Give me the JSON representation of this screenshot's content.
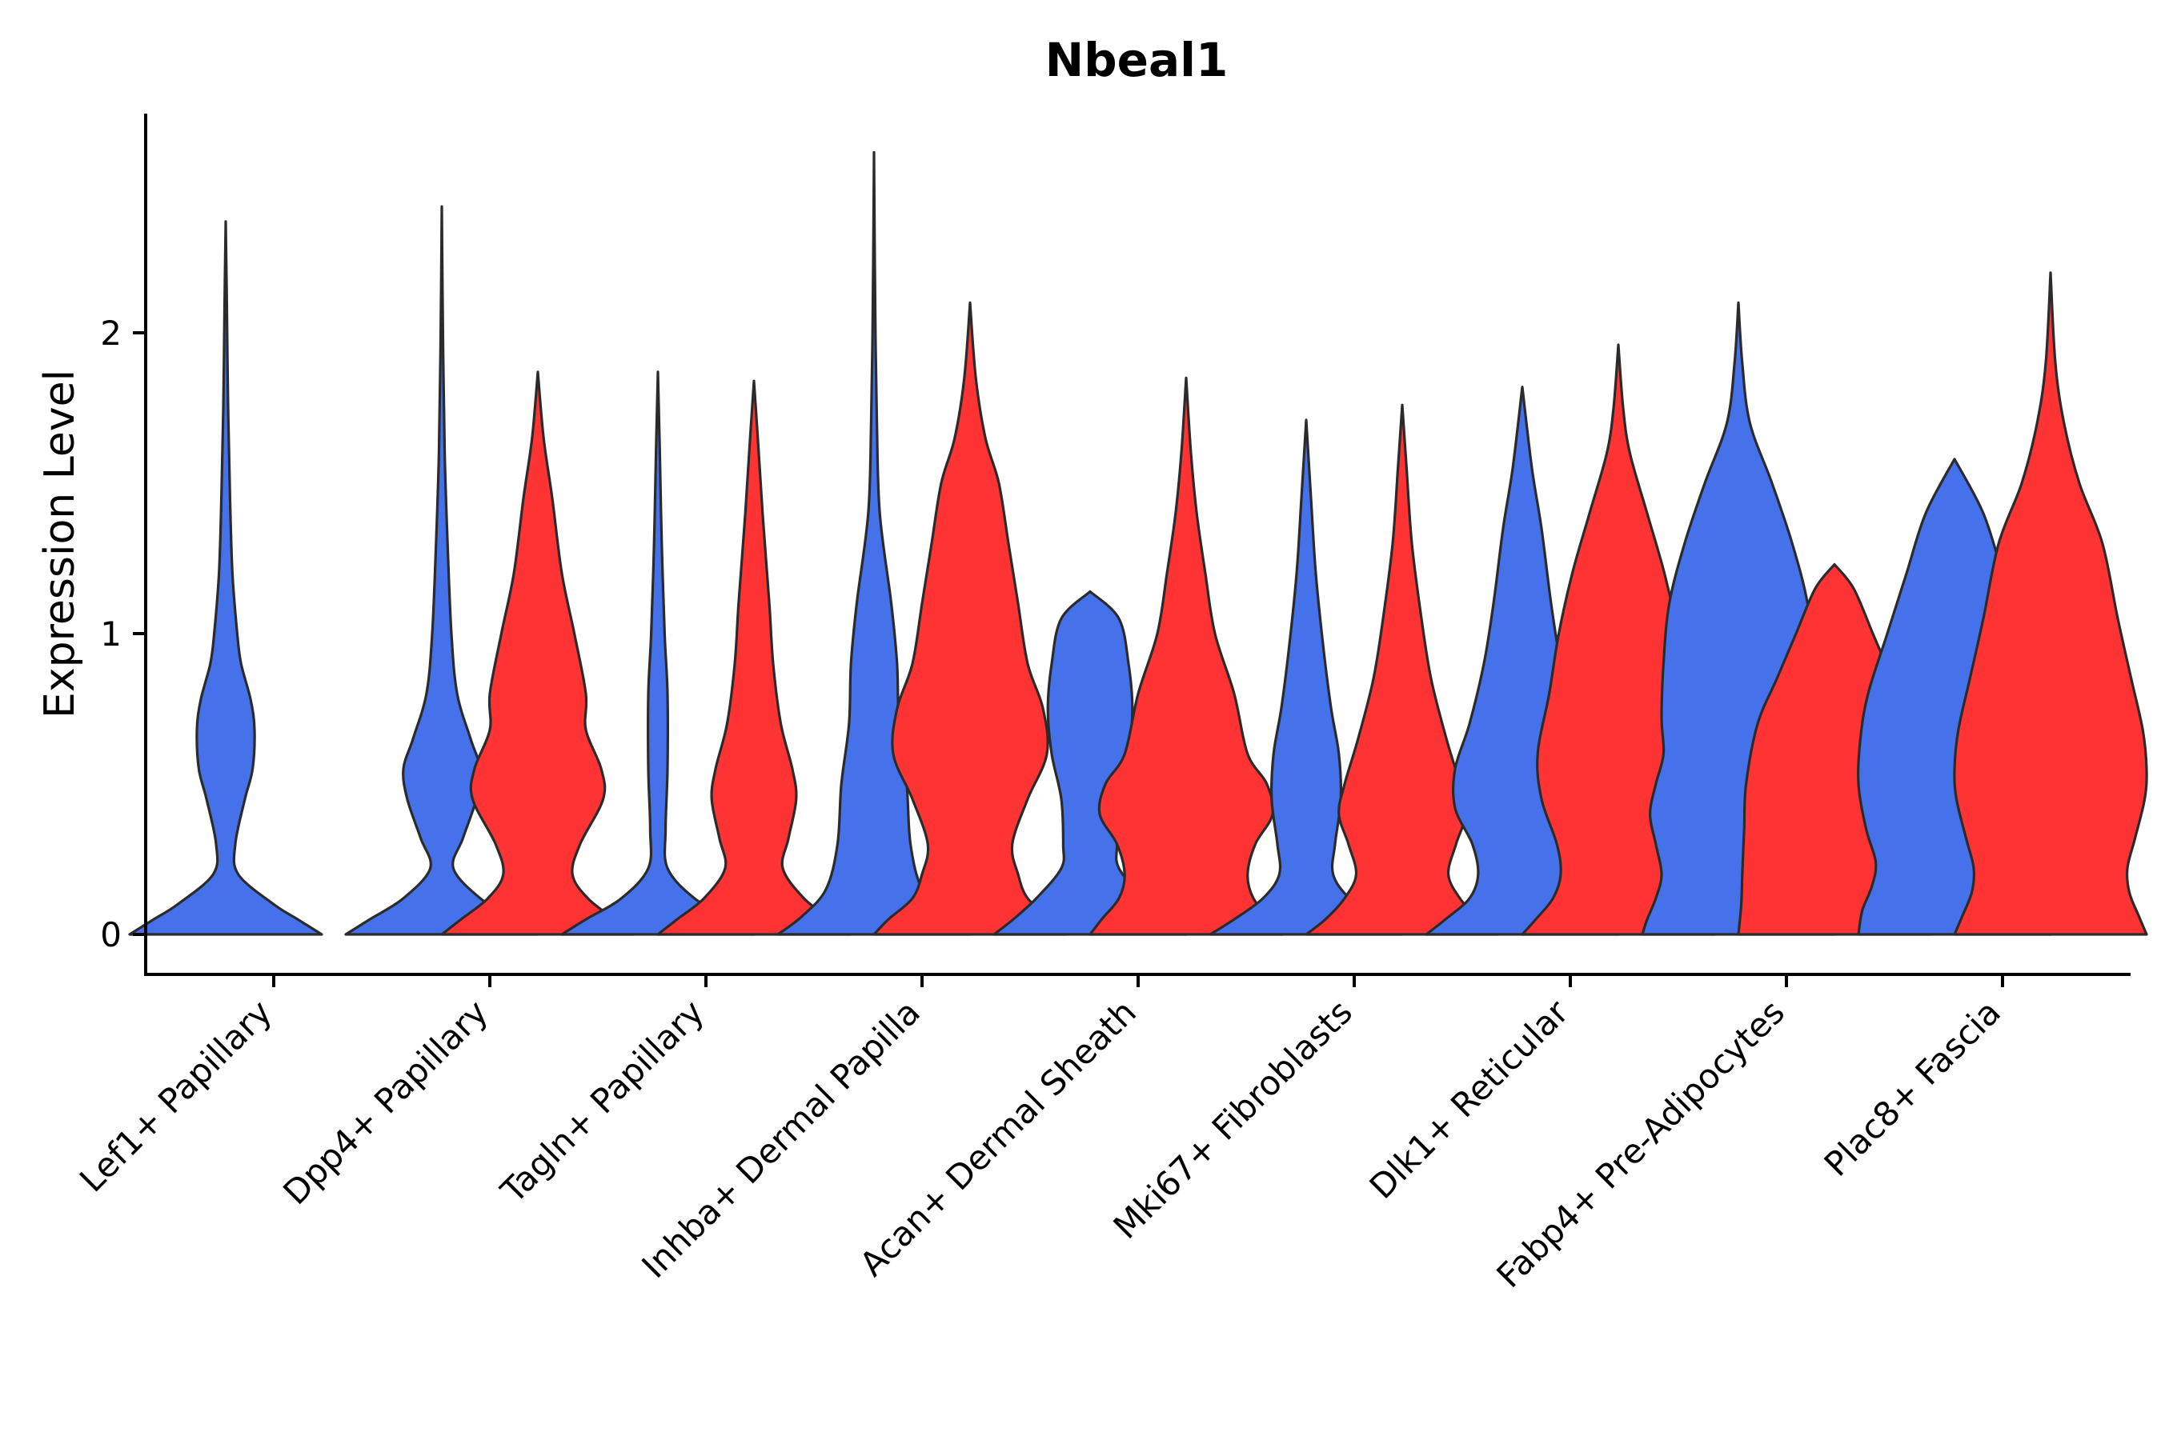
{
  "chart_data": {
    "type": "violin",
    "title": "Nbeal1",
    "xlabel": "",
    "ylabel": "Expression Level",
    "ylim": [
      -0.13,
      2.73
    ],
    "yticks": [
      0,
      1,
      2
    ],
    "legend": "none",
    "colors": {
      "group_a": "#4571EA",
      "group_b": "#FF3333",
      "outline": "#2b2b2b"
    },
    "series": [
      {
        "name": "group_a",
        "color": "#4571EA"
      },
      {
        "name": "group_b",
        "color": "#FF3333"
      }
    ],
    "categories": [
      "Lef1+ Papillary",
      "Dpp4+ Papillary",
      "Tagln+ Papillary",
      "Inhba+ Dermal Papilla",
      "Acan+ Dermal Sheath",
      "Mki67+ Fibroblasts",
      "Dlk1+ Reticular",
      "Fabp4+ Pre-Adipocytes",
      "Plac8+ Fascia"
    ],
    "violins": [
      {
        "category": "Lef1+ Papillary",
        "series": "group_a",
        "max": 2.37,
        "profile": [
          [
            0,
            1.0
          ],
          [
            0.05,
            0.75
          ],
          [
            0.1,
            0.5
          ],
          [
            0.2,
            0.13
          ],
          [
            0.3,
            0.1
          ],
          [
            0.45,
            0.2
          ],
          [
            0.55,
            0.28
          ],
          [
            0.68,
            0.3
          ],
          [
            0.78,
            0.26
          ],
          [
            0.9,
            0.16
          ],
          [
            1.0,
            0.12
          ],
          [
            1.2,
            0.07
          ],
          [
            1.45,
            0.045
          ],
          [
            1.75,
            0.025
          ],
          [
            2.1,
            0.012
          ],
          [
            2.37,
            0
          ]
        ]
      },
      {
        "category": "Dpp4+ Papillary",
        "series": "group_a",
        "max": 2.42,
        "profile": [
          [
            0,
            1.0
          ],
          [
            0.05,
            0.75
          ],
          [
            0.12,
            0.4
          ],
          [
            0.22,
            0.12
          ],
          [
            0.32,
            0.22
          ],
          [
            0.45,
            0.36
          ],
          [
            0.55,
            0.4
          ],
          [
            0.65,
            0.3
          ],
          [
            0.8,
            0.16
          ],
          [
            1.0,
            0.1
          ],
          [
            1.3,
            0.06
          ],
          [
            1.6,
            0.03
          ],
          [
            2.0,
            0.012
          ],
          [
            2.42,
            0
          ]
        ]
      },
      {
        "category": "Dpp4+ Papillary",
        "series": "group_b",
        "max": 1.87,
        "profile": [
          [
            0,
            1.0
          ],
          [
            0.05,
            0.8
          ],
          [
            0.12,
            0.52
          ],
          [
            0.2,
            0.36
          ],
          [
            0.3,
            0.44
          ],
          [
            0.45,
            0.68
          ],
          [
            0.55,
            0.66
          ],
          [
            0.68,
            0.5
          ],
          [
            0.8,
            0.5
          ],
          [
            1.0,
            0.38
          ],
          [
            1.2,
            0.25
          ],
          [
            1.45,
            0.15
          ],
          [
            1.65,
            0.06
          ],
          [
            1.87,
            0
          ]
        ]
      },
      {
        "category": "Tagln+ Papillary",
        "series": "group_a",
        "max": 1.87,
        "profile": [
          [
            0,
            1.0
          ],
          [
            0.05,
            0.75
          ],
          [
            0.12,
            0.38
          ],
          [
            0.22,
            0.1
          ],
          [
            0.35,
            0.08
          ],
          [
            0.55,
            0.1
          ],
          [
            0.8,
            0.1
          ],
          [
            1.0,
            0.07
          ],
          [
            1.3,
            0.04
          ],
          [
            1.6,
            0.02
          ],
          [
            1.87,
            0
          ]
        ]
      },
      {
        "category": "Tagln+ Papillary",
        "series": "group_b",
        "max": 1.84,
        "profile": [
          [
            0,
            1.0
          ],
          [
            0.05,
            0.8
          ],
          [
            0.12,
            0.52
          ],
          [
            0.22,
            0.3
          ],
          [
            0.32,
            0.36
          ],
          [
            0.45,
            0.44
          ],
          [
            0.55,
            0.4
          ],
          [
            0.7,
            0.28
          ],
          [
            0.9,
            0.2
          ],
          [
            1.1,
            0.16
          ],
          [
            1.4,
            0.09
          ],
          [
            1.65,
            0.04
          ],
          [
            1.84,
            0
          ]
        ]
      },
      {
        "category": "Inhba+ Dermal Papilla",
        "series": "group_a",
        "max": 2.6,
        "profile": [
          [
            0,
            1.0
          ],
          [
            0.06,
            0.75
          ],
          [
            0.15,
            0.5
          ],
          [
            0.3,
            0.38
          ],
          [
            0.5,
            0.34
          ],
          [
            0.7,
            0.26
          ],
          [
            0.9,
            0.24
          ],
          [
            1.1,
            0.18
          ],
          [
            1.4,
            0.06
          ],
          [
            1.7,
            0.03
          ],
          [
            2.0,
            0.015
          ],
          [
            2.3,
            0.007
          ],
          [
            2.6,
            0
          ]
        ]
      },
      {
        "category": "Inhba+ Dermal Papilla",
        "series": "group_b",
        "max": 2.1,
        "profile": [
          [
            0,
            1.0
          ],
          [
            0.05,
            0.85
          ],
          [
            0.12,
            0.6
          ],
          [
            0.2,
            0.5
          ],
          [
            0.3,
            0.44
          ],
          [
            0.45,
            0.6
          ],
          [
            0.6,
            0.8
          ],
          [
            0.75,
            0.76
          ],
          [
            0.9,
            0.6
          ],
          [
            1.1,
            0.5
          ],
          [
            1.3,
            0.4
          ],
          [
            1.5,
            0.3
          ],
          [
            1.65,
            0.16
          ],
          [
            1.85,
            0.06
          ],
          [
            2.1,
            0
          ]
        ]
      },
      {
        "category": "Acan+ Dermal Sheath",
        "series": "group_a",
        "max": 1.14,
        "profile": [
          [
            0,
            1.0
          ],
          [
            0.05,
            0.8
          ],
          [
            0.12,
            0.56
          ],
          [
            0.22,
            0.3
          ],
          [
            0.3,
            0.28
          ],
          [
            0.45,
            0.3
          ],
          [
            0.6,
            0.4
          ],
          [
            0.75,
            0.44
          ],
          [
            0.9,
            0.4
          ],
          [
            1.05,
            0.3
          ],
          [
            1.14,
            0
          ]
        ]
      },
      {
        "category": "Acan+ Dermal Sheath",
        "series": "group_b",
        "max": 1.85,
        "profile": [
          [
            0,
            1.0
          ],
          [
            0.05,
            0.88
          ],
          [
            0.12,
            0.7
          ],
          [
            0.2,
            0.64
          ],
          [
            0.3,
            0.72
          ],
          [
            0.4,
            0.9
          ],
          [
            0.5,
            0.84
          ],
          [
            0.6,
            0.64
          ],
          [
            0.8,
            0.5
          ],
          [
            1.0,
            0.3
          ],
          [
            1.2,
            0.2
          ],
          [
            1.4,
            0.11
          ],
          [
            1.6,
            0.05
          ],
          [
            1.85,
            0
          ]
        ]
      },
      {
        "category": "Mki67+ Fibroblasts",
        "series": "group_a",
        "max": 1.71,
        "profile": [
          [
            0,
            1.0
          ],
          [
            0.05,
            0.75
          ],
          [
            0.12,
            0.45
          ],
          [
            0.2,
            0.28
          ],
          [
            0.3,
            0.3
          ],
          [
            0.45,
            0.36
          ],
          [
            0.6,
            0.34
          ],
          [
            0.75,
            0.26
          ],
          [
            0.95,
            0.18
          ],
          [
            1.2,
            0.1
          ],
          [
            1.45,
            0.05
          ],
          [
            1.71,
            0
          ]
        ]
      },
      {
        "category": "Mki67+ Fibroblasts",
        "series": "group_b",
        "max": 1.76,
        "profile": [
          [
            0,
            1.0
          ],
          [
            0.05,
            0.8
          ],
          [
            0.12,
            0.6
          ],
          [
            0.2,
            0.48
          ],
          [
            0.3,
            0.56
          ],
          [
            0.4,
            0.66
          ],
          [
            0.5,
            0.6
          ],
          [
            0.65,
            0.46
          ],
          [
            0.85,
            0.3
          ],
          [
            1.05,
            0.2
          ],
          [
            1.3,
            0.1
          ],
          [
            1.55,
            0.045
          ],
          [
            1.76,
            0
          ]
        ]
      },
      {
        "category": "Dlk1+ Reticular",
        "series": "group_a",
        "max": 1.82,
        "profile": [
          [
            0,
            1.0
          ],
          [
            0.05,
            0.8
          ],
          [
            0.12,
            0.55
          ],
          [
            0.2,
            0.46
          ],
          [
            0.3,
            0.52
          ],
          [
            0.42,
            0.7
          ],
          [
            0.55,
            0.7
          ],
          [
            0.7,
            0.55
          ],
          [
            0.9,
            0.4
          ],
          [
            1.1,
            0.3
          ],
          [
            1.35,
            0.2
          ],
          [
            1.55,
            0.1
          ],
          [
            1.82,
            0
          ]
        ]
      },
      {
        "category": "Dlk1+ Reticular",
        "series": "group_b",
        "max": 1.96,
        "profile": [
          [
            0,
            1.0
          ],
          [
            0.05,
            0.86
          ],
          [
            0.12,
            0.68
          ],
          [
            0.2,
            0.6
          ],
          [
            0.3,
            0.64
          ],
          [
            0.45,
            0.8
          ],
          [
            0.6,
            0.84
          ],
          [
            0.8,
            0.72
          ],
          [
            1.0,
            0.62
          ],
          [
            1.2,
            0.48
          ],
          [
            1.4,
            0.3
          ],
          [
            1.6,
            0.12
          ],
          [
            1.75,
            0.05
          ],
          [
            1.96,
            0
          ]
        ]
      },
      {
        "category": "Fabp4+ Pre-Adipocytes",
        "series": "group_a",
        "max": 2.1,
        "profile": [
          [
            0,
            1.0
          ],
          [
            0.05,
            0.95
          ],
          [
            0.12,
            0.86
          ],
          [
            0.2,
            0.8
          ],
          [
            0.3,
            0.86
          ],
          [
            0.4,
            0.92
          ],
          [
            0.5,
            0.86
          ],
          [
            0.6,
            0.78
          ],
          [
            0.72,
            0.8
          ],
          [
            0.9,
            0.78
          ],
          [
            1.1,
            0.72
          ],
          [
            1.3,
            0.56
          ],
          [
            1.5,
            0.35
          ],
          [
            1.7,
            0.12
          ],
          [
            1.9,
            0.04
          ],
          [
            2.1,
            0
          ]
        ]
      },
      {
        "category": "Fabp4+ Pre-Adipocytes",
        "series": "group_b",
        "max": 1.23,
        "profile": [
          [
            0,
            1.0
          ],
          [
            0.1,
            0.97
          ],
          [
            0.2,
            0.96
          ],
          [
            0.35,
            0.94
          ],
          [
            0.5,
            0.92
          ],
          [
            0.7,
            0.8
          ],
          [
            0.85,
            0.6
          ],
          [
            1.0,
            0.4
          ],
          [
            1.15,
            0.2
          ],
          [
            1.23,
            0
          ]
        ]
      },
      {
        "category": "Plac8+ Fascia",
        "series": "group_a",
        "max": 1.58,
        "profile": [
          [
            0,
            1.0
          ],
          [
            0.08,
            0.96
          ],
          [
            0.16,
            0.86
          ],
          [
            0.24,
            0.82
          ],
          [
            0.35,
            0.92
          ],
          [
            0.5,
            1.0
          ],
          [
            0.65,
            0.98
          ],
          [
            0.8,
            0.9
          ],
          [
            1.0,
            0.7
          ],
          [
            1.2,
            0.5
          ],
          [
            1.4,
            0.3
          ],
          [
            1.58,
            0
          ]
        ]
      },
      {
        "category": "Plac8+ Fascia",
        "series": "group_b",
        "max": 2.2,
        "profile": [
          [
            0,
            1.0
          ],
          [
            0.06,
            0.92
          ],
          [
            0.14,
            0.82
          ],
          [
            0.22,
            0.8
          ],
          [
            0.32,
            0.88
          ],
          [
            0.45,
            0.98
          ],
          [
            0.55,
            1.0
          ],
          [
            0.68,
            0.96
          ],
          [
            0.85,
            0.84
          ],
          [
            1.05,
            0.7
          ],
          [
            1.3,
            0.54
          ],
          [
            1.5,
            0.3
          ],
          [
            1.7,
            0.14
          ],
          [
            1.9,
            0.05
          ],
          [
            2.2,
            0
          ]
        ]
      }
    ]
  }
}
